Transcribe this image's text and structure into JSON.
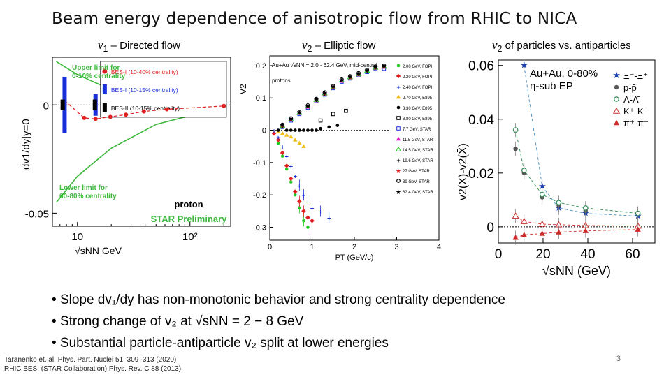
{
  "slide": {
    "title": "Beam energy dependence of anisotropic flow from RHIC to NICA",
    "page_number": "3",
    "bullets": [
      "Slope dv₁/dy has non-monotonic behavior and strong centrality dependence",
      "Strong change of v₂ at √sNN = 2 − 8 GeV",
      "Substantial particle-antiparticle v₂ split at lower energies"
    ],
    "references": [
      "Taranenko et. al. Phys. Part. Nuclei 51, 309–313 (2020)",
      "RHIC BES: (STAR Collaboration) Phys. Rev. C 88 (2013)"
    ]
  },
  "panels": {
    "p1_title_sym": "v",
    "p1_title_sub": "1",
    "p1_title_rest": " – Directed flow",
    "p2_title_sym": "v",
    "p2_title_sub": "2",
    "p2_title_rest": " – Elliptic flow",
    "p3_title_sym": "v",
    "p3_title_sub": "2",
    "p3_title_rest": " of particles vs. antiparticles"
  },
  "chart_data": [
    {
      "type": "scatter",
      "title": "v1 – Directed flow",
      "xlabel": "√sNN GeV",
      "ylabel": "dv1/dy|y=0",
      "xscale": "log",
      "xlim": [
        6,
        230
      ],
      "ylim": [
        -0.056,
        0.022
      ],
      "xticks": [
        {
          "v": 10,
          "label": "10"
        },
        {
          "v": 100,
          "label": "10²"
        }
      ],
      "yticks": [
        {
          "v": 0,
          "label": "0"
        },
        {
          "v": -0.05,
          "label": "-0.05"
        }
      ],
      "legend": [
        "BES-I (10-40% centrality)",
        "BES-I (10-15% centrality)",
        "BES-II (10-15% centrality)"
      ],
      "series": [
        {
          "name": "BES-I (10-40% centrality)",
          "color": "#e02020",
          "x": [
            7.7,
            11.5,
            14.5,
            19.6,
            27,
            39,
            62.4,
            200
          ],
          "y": [
            0.002,
            -0.006,
            -0.0065,
            -0.0055,
            -0.0045,
            -0.003,
            -0.002,
            -0.0005
          ]
        },
        {
          "name": "BES-I (10-15% centrality)",
          "color": "#1a2fd8",
          "x": [
            7.7,
            14.5
          ],
          "y": [
            0.0,
            0.0
          ],
          "yerr": [
            0.013,
            0.005
          ]
        },
        {
          "name": "BES-II (10-15% centrality)",
          "color": "#000000",
          "x": [
            7.4,
            14.3
          ],
          "y": [
            0.0,
            0.0
          ],
          "yerr": [
            0.0015,
            0.0015
          ]
        }
      ],
      "bands": {
        "upper": {
          "x": [
            6.5,
            10,
            20,
            50,
            100,
            200
          ],
          "y": [
            0.02,
            0.014,
            0.007,
            0.003,
            0.0015,
            0.001
          ]
        },
        "lower": {
          "x": [
            6.5,
            10,
            20,
            50,
            100,
            200
          ],
          "y": [
            -0.045,
            -0.033,
            -0.02,
            -0.009,
            -0.005,
            -0.003
          ]
        }
      },
      "annotations": [
        "Upper limit for 0-10% centrality",
        "Lower limit for 60-80% centrality",
        "proton",
        "STAR Preliminary"
      ]
    },
    {
      "type": "scatter",
      "title": "v2 – Elliptic flow",
      "xlabel": "PT (GeV/c)",
      "ylabel": "V2",
      "xlim": [
        0,
        4
      ],
      "ylim": [
        -0.34,
        0.23
      ],
      "xticks": [
        0,
        1,
        2,
        3,
        4
      ],
      "yticks": [
        0.2,
        0.1,
        0,
        -0.1,
        -0.2,
        -0.3
      ],
      "header": "Au+Au √sNN = 2.0 - 62.4 GeV, mid-central",
      "species": "protons",
      "legend": [
        "2.00 GeV, FOPI",
        "2.20 GeV, FOPI",
        "2.40 GeV, FOPI",
        "2.70 GeV, E895",
        "3.30 GeV, E895",
        "3.80 GeV, E895",
        "7.7 GeV, STAR",
        "11.5 GeV, STAR",
        "14.5 GeV, STAR",
        "19.6 GeV, STAR",
        "27 GeV, STAR",
        "39 GeV, STAR",
        "62.4 GeV, STAR"
      ],
      "series": [
        {
          "name": "2.00 GeV, FOPI",
          "color": "#22cc22",
          "x": [
            0.1,
            0.2,
            0.3,
            0.4,
            0.5,
            0.6,
            0.7,
            0.8,
            0.9
          ],
          "y": [
            -0.01,
            -0.04,
            -0.08,
            -0.12,
            -0.16,
            -0.2,
            -0.24,
            -0.28,
            -0.3
          ]
        },
        {
          "name": "2.20 GeV, FOPI",
          "color": "#e02020",
          "x": [
            0.1,
            0.2,
            0.3,
            0.4,
            0.5,
            0.6,
            0.7,
            0.8,
            0.9,
            1.0
          ],
          "y": [
            -0.01,
            -0.03,
            -0.07,
            -0.11,
            -0.15,
            -0.19,
            -0.22,
            -0.25,
            -0.27,
            -0.28
          ]
        },
        {
          "name": "2.40 GeV, FOPI",
          "color": "#1a2fd8",
          "x": [
            0.1,
            0.2,
            0.3,
            0.4,
            0.5,
            0.6,
            0.7,
            0.8,
            0.9,
            1.0,
            1.2,
            1.4
          ],
          "y": [
            0,
            -0.02,
            -0.05,
            -0.08,
            -0.11,
            -0.14,
            -0.17,
            -0.2,
            -0.22,
            -0.24,
            -0.25,
            -0.27
          ]
        },
        {
          "name": "2.70 GeV, E895",
          "color": "#f0c020",
          "x": [
            0.2,
            0.3,
            0.4,
            0.5,
            0.6,
            0.7,
            0.8
          ],
          "y": [
            -0.005,
            -0.01,
            -0.015,
            -0.02,
            -0.03,
            -0.04,
            -0.05
          ]
        },
        {
          "name": "3.30 GeV, E895",
          "color": "#000000",
          "x": [
            0.2,
            0.4,
            0.5,
            0.6,
            0.7,
            0.8,
            0.9,
            1.0,
            1.1,
            1.2,
            1.4,
            1.6
          ],
          "y": [
            0,
            0,
            0,
            0,
            0,
            0,
            0,
            0,
            0,
            0.005,
            0.01,
            0.015
          ]
        },
        {
          "name": "3.80 GeV, E895",
          "color": "#000000",
          "x": [
            1.2,
            1.5,
            1.8
          ],
          "y": [
            0.03,
            0.05,
            0.06
          ]
        },
        {
          "name": "7.7 GeV, STAR",
          "color": "#1a2fd8",
          "x": [
            0.3,
            0.5,
            0.7,
            0.9,
            1.1,
            1.3,
            1.5,
            1.7,
            1.9,
            2.1,
            2.3,
            2.5,
            2.7
          ],
          "y": [
            0.01,
            0.03,
            0.05,
            0.07,
            0.09,
            0.11,
            0.13,
            0.15,
            0.16,
            0.17,
            0.18,
            0.19,
            0.19
          ]
        },
        {
          "name": "11.5 GeV, STAR",
          "color": "#e020c0",
          "x": [
            0.3,
            0.5,
            0.7,
            0.9,
            1.1,
            1.3,
            1.5,
            1.7,
            1.9,
            2.1,
            2.3,
            2.5,
            2.7
          ],
          "y": [
            0.012,
            0.032,
            0.052,
            0.072,
            0.092,
            0.112,
            0.132,
            0.152,
            0.162,
            0.172,
            0.182,
            0.192,
            0.195
          ]
        },
        {
          "name": "14.5 GeV, STAR",
          "color": "#22cc22",
          "x": [
            0.3,
            0.5,
            0.7,
            0.9,
            1.1,
            1.3,
            1.5,
            1.7,
            1.9,
            2.1,
            2.3,
            2.5,
            2.7
          ],
          "y": [
            0.014,
            0.034,
            0.054,
            0.074,
            0.094,
            0.114,
            0.134,
            0.154,
            0.164,
            0.174,
            0.184,
            0.194,
            0.197
          ]
        },
        {
          "name": "19.6 GeV, STAR",
          "color": "#000000",
          "x": [
            0.3,
            0.5,
            0.7,
            0.9,
            1.1,
            1.3,
            1.5,
            1.7,
            1.9,
            2.1,
            2.3,
            2.5,
            2.7
          ],
          "y": [
            0.015,
            0.035,
            0.055,
            0.075,
            0.095,
            0.115,
            0.135,
            0.155,
            0.165,
            0.175,
            0.185,
            0.195,
            0.198
          ]
        },
        {
          "name": "27 GeV, STAR",
          "color": "#e02020",
          "x": [
            0.3,
            0.5,
            0.7,
            0.9,
            1.1,
            1.3,
            1.5,
            1.7,
            1.9,
            2.1,
            2.3,
            2.5,
            2.7
          ],
          "y": [
            0.016,
            0.036,
            0.056,
            0.076,
            0.096,
            0.116,
            0.136,
            0.156,
            0.166,
            0.176,
            0.186,
            0.196,
            0.2
          ]
        },
        {
          "name": "39 GeV, STAR",
          "color": "#000000",
          "x": [
            0.3,
            0.5,
            0.7,
            0.9,
            1.1,
            1.3,
            1.5,
            1.7,
            1.9,
            2.1,
            2.3,
            2.5,
            2.7
          ],
          "y": [
            0.017,
            0.037,
            0.057,
            0.077,
            0.097,
            0.117,
            0.137,
            0.157,
            0.167,
            0.177,
            0.187,
            0.197,
            0.2
          ]
        },
        {
          "name": "62.4 GeV, STAR",
          "color": "#000000",
          "x": [
            0.3,
            0.5,
            0.7,
            0.9,
            1.1,
            1.3,
            1.5,
            1.7,
            1.9,
            2.1,
            2.3,
            2.5,
            2.7
          ],
          "y": [
            0.018,
            0.038,
            0.058,
            0.078,
            0.098,
            0.118,
            0.138,
            0.158,
            0.168,
            0.178,
            0.188,
            0.198,
            0.202
          ]
        }
      ]
    },
    {
      "type": "scatter",
      "title": "v2 of particles vs. antiparticles",
      "xlabel": "√sNN (GeV)",
      "ylabel": "v2(X)-v2(X̄)",
      "xlim": [
        0,
        70
      ],
      "ylim": [
        -0.006,
        0.062
      ],
      "xticks": [
        0,
        20,
        40,
        60
      ],
      "yticks": [
        {
          "v": 0.06,
          "label": "0.06"
        },
        {
          "v": 0.04,
          "label": "0.04"
        },
        {
          "v": 0.02,
          "label": "0.02"
        },
        {
          "v": 0,
          "label": "0"
        }
      ],
      "header": [
        "Au+Au, 0-80%",
        "η-sub EP"
      ],
      "legend": [
        "Ξ⁻-Ξ̄⁺",
        "p-p̄",
        "Λ-Λ̄",
        "K⁺-K⁻",
        "π⁺-π⁻"
      ],
      "series": [
        {
          "name": "Ξ⁻-Ξ̄⁺",
          "color": "#1a3fb0",
          "x": [
            11.5,
            19.6,
            27,
            39,
            62.4
          ],
          "y": [
            0.06,
            0.015,
            0.007,
            0.005,
            0.004
          ]
        },
        {
          "name": "p-p̄",
          "color": "#555555",
          "x": [
            7.7,
            11.5,
            19.6,
            27,
            39,
            62.4
          ],
          "y": [
            0.029,
            0.02,
            0.011,
            0.008,
            0.006,
            0.005
          ]
        },
        {
          "name": "Λ-Λ̄",
          "color": "#2e8b57",
          "x": [
            7.7,
            11.5,
            19.6,
            27,
            39,
            62.4
          ],
          "y": [
            0.036,
            0.021,
            0.012,
            0.009,
            0.007,
            0.005
          ]
        },
        {
          "name": "K⁺-K⁻",
          "color": "#cc2a2a",
          "x": [
            7.7,
            11.5,
            19.6,
            27,
            39,
            62.4
          ],
          "y": [
            0.004,
            0.002,
            0.001,
            0.0008,
            0.0005,
            0.0003
          ]
        },
        {
          "name": "π⁺-π⁻",
          "color": "#cc2a2a",
          "x": [
            7.7,
            11.5,
            19.6,
            27,
            39,
            62.4
          ],
          "y": [
            -0.004,
            -0.003,
            -0.0025,
            -0.002,
            -0.0015,
            -0.001
          ]
        }
      ]
    }
  ]
}
